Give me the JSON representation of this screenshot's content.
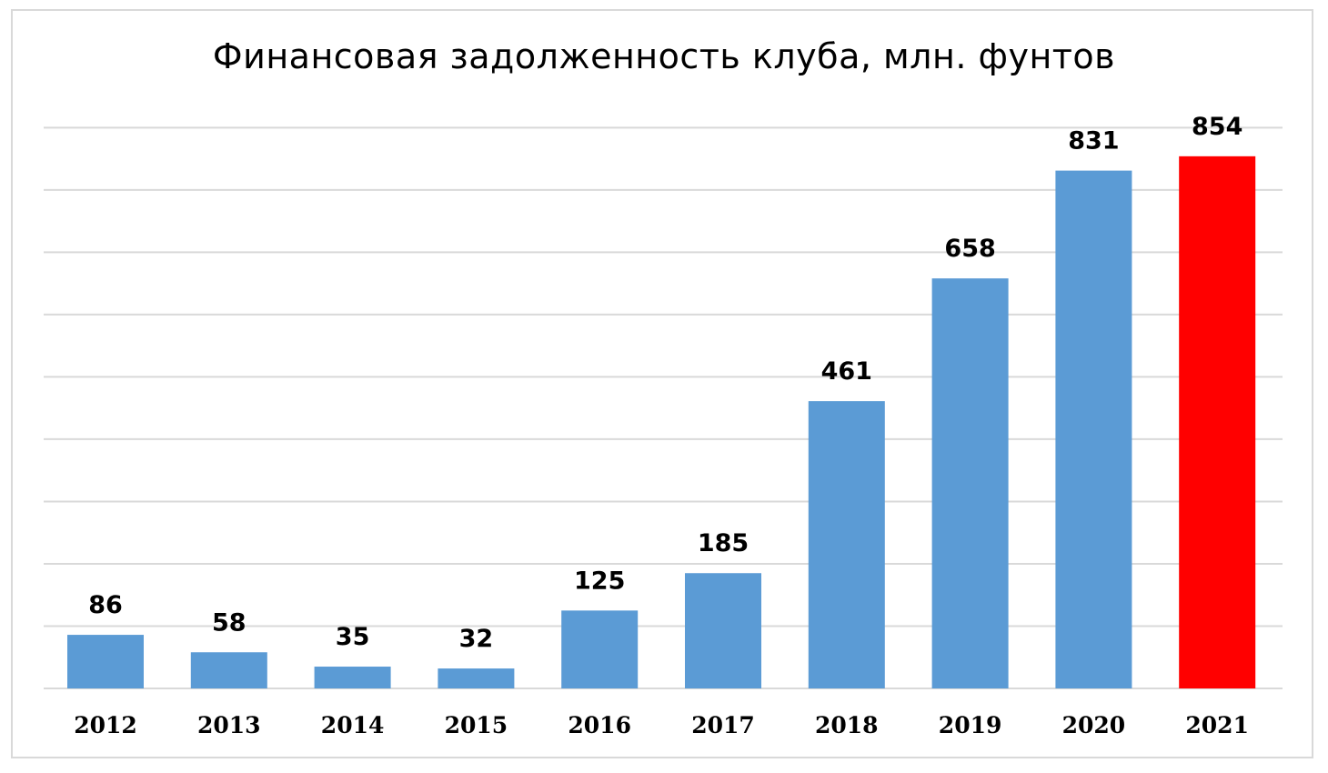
{
  "chart_data": {
    "type": "bar",
    "title": "Финансовая задолженность клуба, млн. фунтов",
    "categories": [
      "2012",
      "2013",
      "2014",
      "2015",
      "2016",
      "2017",
      "2018",
      "2019",
      "2020",
      "2021"
    ],
    "values": [
      86,
      58,
      35,
      32,
      125,
      185,
      461,
      658,
      831,
      854
    ],
    "data_labels": true,
    "ylim": [
      0,
      900
    ],
    "grid": true,
    "legend": "none",
    "colors": {
      "default_bar": "#5b9bd5",
      "highlight_bar": "#ff0000",
      "highlight_category": "2021",
      "gridline": "#d9d9d9"
    }
  }
}
